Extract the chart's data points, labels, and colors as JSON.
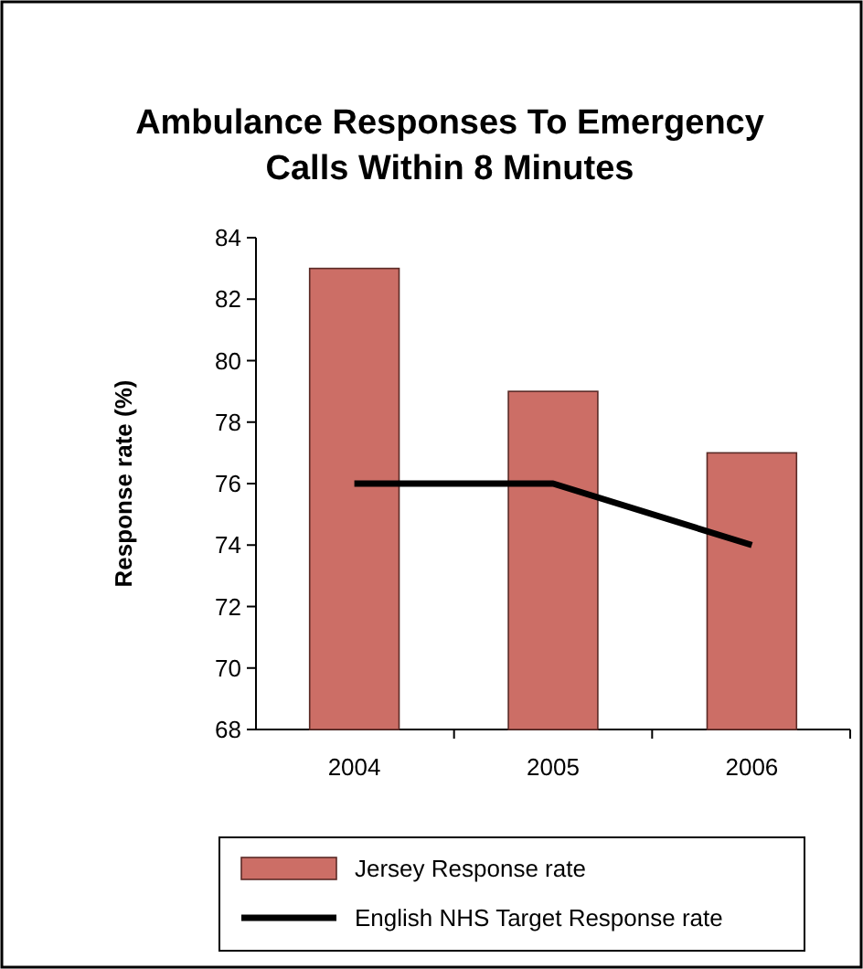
{
  "chart_data": {
    "type": "bar",
    "title": "Ambulance Responses To Emergency Calls Within 8 Minutes",
    "ylabel": "Response rate (%)",
    "categories": [
      "2004",
      "2005",
      "2006"
    ],
    "series": [
      {
        "name": "Jersey Response rate",
        "color": "#cc6e66",
        "values": [
          83,
          79,
          77
        ]
      },
      {
        "name": "English NHS Target Response rate",
        "type": "line",
        "color": "#000000",
        "values": [
          76,
          76,
          74
        ]
      }
    ],
    "ylim": [
      68,
      84
    ],
    "yticks": [
      68,
      70,
      72,
      74,
      76,
      78,
      80,
      82,
      84
    ],
    "legend": "bottom",
    "grid": false,
    "marker": "none"
  }
}
